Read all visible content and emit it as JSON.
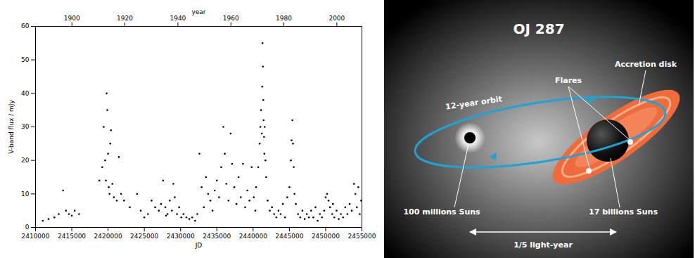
{
  "chart_data": {
    "type": "scatter",
    "x_label": "JD",
    "x2_label": "year",
    "y_label": "V-band flux / mJy",
    "xlim": [
      2410000,
      2455000
    ],
    "xticks": [
      2410000,
      2415000,
      2420000,
      2425000,
      2430000,
      2435000,
      2440000,
      2445000,
      2450000,
      2455000
    ],
    "x2lim": [
      1886.26,
      2009.46
    ],
    "x2ticks": [
      1900,
      1920,
      1940,
      1960,
      1980,
      2000
    ],
    "ylim": [
      0,
      60
    ],
    "yticks": [
      0,
      10,
      20,
      30,
      40,
      50,
      60
    ],
    "grid": false,
    "color": "#000000",
    "marker": "dot",
    "x": [
      2411000,
      2411800,
      2412600,
      2413200,
      2413800,
      2414200,
      2414600,
      2415000,
      2415400,
      2416000,
      2418800,
      2419200,
      2419400,
      2419600,
      2419700,
      2419800,
      2419900,
      2420000,
      2420100,
      2420200,
      2420300,
      2420400,
      2420600,
      2420800,
      2421200,
      2421500,
      2421800,
      2422200,
      2423000,
      2424000,
      2424500,
      2425000,
      2425500,
      2426000,
      2426500,
      2427000,
      2427300,
      2427600,
      2427900,
      2428200,
      2428500,
      2428800,
      2429000,
      2429200,
      2429500,
      2429800,
      2430100,
      2430400,
      2430800,
      2431200,
      2431600,
      2432000,
      2432300,
      2432600,
      2432900,
      2433200,
      2433500,
      2433800,
      2434100,
      2434400,
      2434700,
      2435000,
      2435300,
      2435600,
      2435900,
      2436100,
      2436300,
      2436600,
      2436900,
      2437100,
      2437400,
      2437700,
      2438000,
      2438300,
      2438600,
      2438900,
      2439200,
      2439500,
      2439800,
      2440100,
      2440400,
      2440700,
      2440900,
      2441000,
      2441100,
      2441200,
      2441250,
      2441300,
      2441350,
      2441400,
      2441450,
      2441500,
      2441550,
      2441600,
      2441700,
      2441800,
      2442000,
      2442300,
      2442600,
      2442900,
      2443200,
      2443500,
      2443800,
      2444100,
      2444400,
      2444700,
      2445000,
      2445200,
      2445300,
      2445400,
      2445500,
      2445600,
      2445700,
      2445900,
      2446200,
      2446500,
      2446800,
      2447100,
      2447400,
      2447700,
      2448000,
      2448300,
      2448600,
      2448900,
      2449200,
      2449500,
      2449800,
      2450000,
      2450200,
      2450400,
      2450600,
      2450900,
      2451200,
      2451500,
      2451800,
      2452100,
      2452400,
      2452700,
      2453000,
      2453300,
      2453600,
      2453900,
      2454100,
      2454300,
      2454500,
      2454700,
      2454900,
      2451000,
      2440300,
      2428000
    ],
    "values": [
      2,
      2.5,
      3,
      4,
      11,
      5,
      4,
      3.5,
      5,
      4,
      14,
      18,
      30,
      20,
      14,
      40,
      35,
      22,
      12,
      10,
      25,
      29,
      13,
      9,
      8,
      21,
      10,
      8,
      6,
      10,
      5,
      3,
      4,
      8,
      6,
      5,
      7,
      14,
      6,
      4,
      8,
      5,
      13,
      9,
      4,
      6,
      3,
      4,
      3,
      2.5,
      3,
      2,
      4,
      22,
      12,
      6,
      15,
      10,
      8,
      5,
      11,
      14,
      9,
      18,
      30,
      22,
      13,
      8,
      28,
      19,
      12,
      7,
      15,
      9,
      19,
      6,
      11,
      8,
      18,
      9,
      12,
      18,
      25,
      30,
      35,
      28,
      42,
      55,
      48,
      38,
      32,
      27,
      22,
      30,
      20,
      15,
      8,
      5,
      6,
      4,
      3,
      5,
      4,
      7,
      3,
      9,
      12,
      20,
      26,
      32,
      25,
      18,
      10,
      7,
      4,
      3,
      5,
      2.5,
      4,
      3,
      5,
      3,
      6,
      2,
      4,
      3,
      5,
      9,
      10,
      8,
      6,
      4,
      3,
      5,
      2.5,
      4,
      3,
      6,
      4,
      7,
      5,
      13,
      10,
      6,
      12,
      4,
      8,
      7,
      5,
      3.5
    ]
  },
  "diagram": {
    "title": "OJ 287",
    "orbit_label": "12-year orbit",
    "flares_label": "Flares",
    "disk_label": "Accretion disk",
    "small_black_hole_label": "100 millions Suns",
    "large_black_hole_label": "17 billions Suns",
    "scale_label": "1/5 light-year"
  }
}
